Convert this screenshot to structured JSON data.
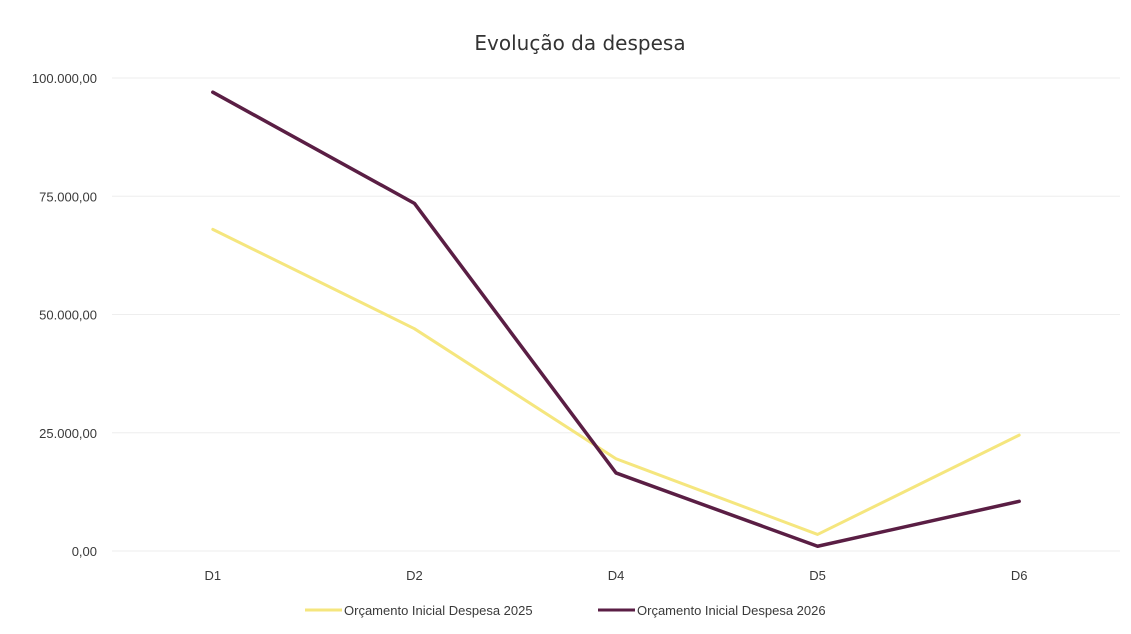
{
  "chart_data": {
    "type": "line",
    "title": "Evolução da despesa",
    "xlabel": "",
    "ylabel": "",
    "categories": [
      "D1",
      "D2",
      "D4",
      "D5",
      "D6"
    ],
    "ylim": [
      0,
      100000
    ],
    "yticks": [
      0,
      25000,
      50000,
      75000,
      100000
    ],
    "ytick_labels": [
      "0,00",
      "25.000,00",
      "50.000,00",
      "75.000,00",
      "100.000,00"
    ],
    "grid": true,
    "legend": "bottom-center",
    "series": [
      {
        "name": "Orçamento Inicial  Despesa 2025",
        "color": "#f5e67e",
        "values": [
          68000,
          47000,
          19500,
          3500,
          24500
        ]
      },
      {
        "name": "Orçamento Inicial  Despesa 2026",
        "color": "#5a1e44",
        "values": [
          97000,
          73500,
          16500,
          1000,
          10500
        ]
      }
    ]
  }
}
